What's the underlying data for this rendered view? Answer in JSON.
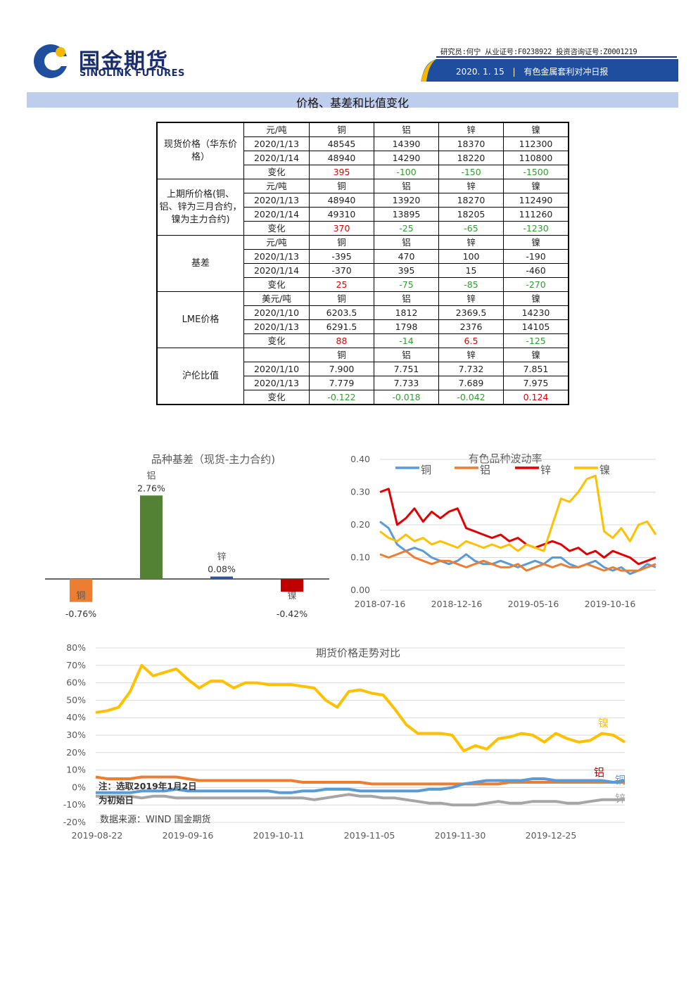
{
  "header": {
    "brand_cn": "国金期货",
    "brand_en": "SINOLINK FUTURES",
    "analyst": "研究员:何宁 从业证号:F0238922 投资咨询证号:Z0001219",
    "date": "2020. 1. 15",
    "report": "有色金属套利对冲日报",
    "colors": {
      "brand": "#1a2e6e",
      "banner": "#1f4e9e",
      "accent": "#f5b800"
    }
  },
  "section_title": "价格、基差和比值变化",
  "table": {
    "groups": [
      {
        "label": "现货价格（华东价格）",
        "rows": [
          {
            "c1": "元/吨",
            "v": [
              "铜",
              "铝",
              "锌",
              "镍"
            ],
            "kind": "head"
          },
          {
            "c1": "2020/1/13",
            "v": [
              "48545",
              "14390",
              "18370",
              "112300"
            ],
            "kind": "val"
          },
          {
            "c1": "2020/1/14",
            "v": [
              "48940",
              "14290",
              "18220",
              "110800"
            ],
            "kind": "val"
          },
          {
            "c1": "变化",
            "v": [
              "395",
              "-100",
              "-150",
              "-1500"
            ],
            "kind": "chg"
          }
        ]
      },
      {
        "label": "上期所价格(铜、铝、锌为三月合约，镍为主力合约)",
        "rows": [
          {
            "c1": "元/吨",
            "v": [
              "铜",
              "铝",
              "锌",
              "镍"
            ],
            "kind": "head"
          },
          {
            "c1": "2020/1/13",
            "v": [
              "48940",
              "13920",
              "18270",
              "112490"
            ],
            "kind": "val"
          },
          {
            "c1": "2020/1/14",
            "v": [
              "49310",
              "13895",
              "18205",
              "111260"
            ],
            "kind": "val"
          },
          {
            "c1": "变化",
            "v": [
              "370",
              "-25",
              "-65",
              "-1230"
            ],
            "kind": "chg"
          }
        ]
      },
      {
        "label": "基差",
        "rows": [
          {
            "c1": "元/吨",
            "v": [
              "铜",
              "铝",
              "锌",
              "镍"
            ],
            "kind": "head"
          },
          {
            "c1": "2020/1/13",
            "v": [
              "-395",
              "470",
              "100",
              "-190"
            ],
            "kind": "val"
          },
          {
            "c1": "2020/1/14",
            "v": [
              "-370",
              "395",
              "15",
              "-460"
            ],
            "kind": "val"
          },
          {
            "c1": "变化",
            "v": [
              "25",
              "-75",
              "-85",
              "-270"
            ],
            "kind": "chg"
          }
        ]
      },
      {
        "label": "LME价格",
        "rows": [
          {
            "c1": "美元/吨",
            "v": [
              "铜",
              "铝",
              "锌",
              "镍"
            ],
            "kind": "head"
          },
          {
            "c1": "2020/1/10",
            "v": [
              "6203.5",
              "1812",
              "2369.5",
              "14230"
            ],
            "kind": "val"
          },
          {
            "c1": "2020/1/13",
            "v": [
              "6291.5",
              "1798",
              "2376",
              "14105"
            ],
            "kind": "val"
          },
          {
            "c1": "变化",
            "v": [
              "88",
              "-14",
              "6.5",
              "-125"
            ],
            "kind": "chg"
          }
        ]
      },
      {
        "label": "沪伦比值",
        "rows": [
          {
            "c1": "",
            "v": [
              "铜",
              "铝",
              "锌",
              "镍"
            ],
            "kind": "head"
          },
          {
            "c1": "2020/1/10",
            "v": [
              "7.900",
              "7.751",
              "7.732",
              "7.851"
            ],
            "kind": "val"
          },
          {
            "c1": "2020/1/13",
            "v": [
              "7.779",
              "7.733",
              "7.689",
              "7.975"
            ],
            "kind": "val"
          },
          {
            "c1": "变化",
            "v": [
              "-0.122",
              "-0.018",
              "-0.042",
              "0.124"
            ],
            "kind": "chg"
          }
        ]
      }
    ]
  },
  "chart_data": [
    {
      "type": "bar",
      "title": "品种基差（现货-主力合约)",
      "categories": [
        "铜",
        "铝",
        "锌",
        "镍"
      ],
      "values": [
        -0.76,
        2.76,
        0.08,
        -0.42
      ],
      "value_labels": [
        "-0.76%",
        "2.76%",
        "0.08%",
        "-0.42%"
      ],
      "colors": [
        "#ed7d31",
        "#548235",
        "#2f5597",
        "#c00000"
      ]
    },
    {
      "type": "line",
      "title": "有色品种波动率",
      "x_ticks": [
        "2018-07-16",
        "2018-12-16",
        "2019-05-16",
        "2019-10-16"
      ],
      "y_ticks": [
        "0.00",
        "0.10",
        "0.20",
        "0.30",
        "0.40"
      ],
      "ylim": [
        0,
        0.4
      ],
      "legend": "top",
      "series": [
        {
          "name": "铜",
          "color": "#5b9bd5",
          "values": [
            0.21,
            0.19,
            0.14,
            0.12,
            0.13,
            0.12,
            0.1,
            0.09,
            0.08,
            0.09,
            0.11,
            0.09,
            0.08,
            0.08,
            0.09,
            0.08,
            0.07,
            0.08,
            0.09,
            0.08,
            0.1,
            0.1,
            0.08,
            0.07,
            0.08,
            0.09,
            0.07,
            0.06,
            0.07,
            0.05,
            0.06,
            0.08,
            0.07
          ]
        },
        {
          "name": "铝",
          "color": "#ed7d31",
          "values": [
            0.11,
            0.1,
            0.11,
            0.12,
            0.1,
            0.09,
            0.08,
            0.09,
            0.09,
            0.08,
            0.07,
            0.08,
            0.09,
            0.08,
            0.07,
            0.07,
            0.08,
            0.06,
            0.07,
            0.08,
            0.07,
            0.08,
            0.07,
            0.07,
            0.08,
            0.07,
            0.06,
            0.07,
            0.06,
            0.06,
            0.06,
            0.07,
            0.08
          ]
        },
        {
          "name": "锌",
          "color": "#e00000",
          "values": [
            0.3,
            0.31,
            0.2,
            0.22,
            0.25,
            0.21,
            0.24,
            0.22,
            0.24,
            0.25,
            0.19,
            0.18,
            0.17,
            0.16,
            0.17,
            0.15,
            0.16,
            0.14,
            0.13,
            0.14,
            0.15,
            0.14,
            0.12,
            0.13,
            0.11,
            0.12,
            0.1,
            0.12,
            0.11,
            0.1,
            0.08,
            0.09,
            0.1
          ]
        },
        {
          "name": "镍",
          "color": "#ffc000",
          "values": [
            0.18,
            0.16,
            0.15,
            0.17,
            0.15,
            0.16,
            0.14,
            0.15,
            0.14,
            0.13,
            0.15,
            0.14,
            0.13,
            0.14,
            0.13,
            0.14,
            0.12,
            0.14,
            0.13,
            0.12,
            0.2,
            0.28,
            0.27,
            0.3,
            0.34,
            0.35,
            0.18,
            0.16,
            0.19,
            0.15,
            0.2,
            0.21,
            0.17
          ]
        }
      ]
    },
    {
      "type": "line",
      "title": "期货价格走势对比",
      "x_ticks": [
        "2019-08-22",
        "2019-09-16",
        "2019-10-11",
        "2019-11-05",
        "2019-11-30",
        "2019-12-25"
      ],
      "y_ticks": [
        "80%",
        "70%",
        "60%",
        "50%",
        "40%",
        "30%",
        "20%",
        "10%",
        "0%",
        "-10%",
        "-20%"
      ],
      "ylim": [
        -20,
        80
      ],
      "annotations": [
        "注：选取2019年1月2日为初始日",
        "数据来源：WIND 国金期货"
      ],
      "series": [
        {
          "name": "镍",
          "color": "#ffc000",
          "values": [
            43,
            44,
            46,
            55,
            70,
            64,
            66,
            68,
            62,
            57,
            61,
            61,
            57,
            60,
            60,
            59,
            59,
            59,
            58,
            57,
            50,
            46,
            55,
            56,
            54,
            53,
            45,
            36,
            31,
            31,
            31,
            30,
            21,
            24,
            22,
            28,
            29,
            31,
            30,
            26,
            31,
            28,
            26,
            27,
            31,
            30,
            26
          ]
        },
        {
          "name": "铝",
          "color": "#ed7d31",
          "values": [
            6,
            5,
            5,
            5,
            6,
            6,
            6,
            6,
            5,
            4,
            4,
            4,
            4,
            4,
            4,
            4,
            4,
            4,
            3,
            3,
            3,
            3,
            3,
            3,
            2,
            2,
            2,
            2,
            2,
            2,
            2,
            2,
            2,
            2,
            2,
            2,
            3,
            3,
            3,
            3,
            3,
            3,
            3,
            3,
            3,
            3,
            3
          ]
        },
        {
          "name": "铜",
          "color": "#5b9bd5",
          "values": [
            -3,
            -3,
            -3,
            -3,
            -2,
            -2,
            -2,
            -1,
            -2,
            -2,
            -2,
            -2,
            -2,
            -2,
            -2,
            -2,
            -3,
            -3,
            -2,
            -2,
            -1,
            -1,
            -1,
            -2,
            -2,
            -2,
            -2,
            -2,
            -2,
            -1,
            -1,
            0,
            2,
            3,
            4,
            4,
            4,
            4,
            5,
            5,
            4,
            4,
            4,
            4,
            4,
            3,
            4
          ]
        },
        {
          "name": "锌",
          "color": "#a5a5a5",
          "values": [
            -5,
            -5,
            -5,
            -5,
            -6,
            -5,
            -5,
            -6,
            -6,
            -6,
            -6,
            -6,
            -6,
            -6,
            -6,
            -6,
            -6,
            -6,
            -6,
            -7,
            -6,
            -5,
            -4,
            -5,
            -5,
            -6,
            -6,
            -7,
            -8,
            -9,
            -9,
            -10,
            -10,
            -10,
            -9,
            -8,
            -9,
            -9,
            -8,
            -8,
            -8,
            -9,
            -9,
            -8,
            -7,
            -7,
            -7
          ]
        }
      ]
    }
  ]
}
